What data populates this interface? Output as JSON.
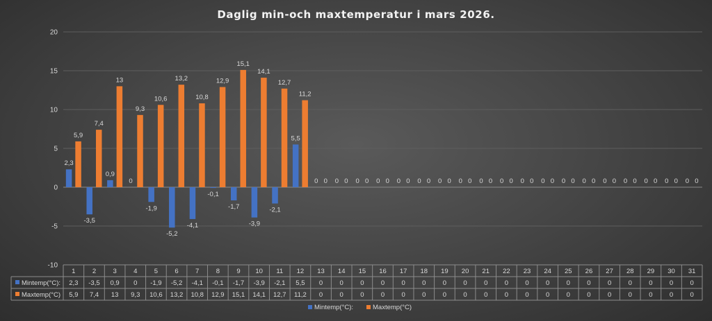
{
  "chart_data": {
    "type": "bar",
    "title": "Daglig min-och maxtemperatur i mars 2026.",
    "categories": [
      "1",
      "2",
      "3",
      "4",
      "5",
      "6",
      "7",
      "8",
      "9",
      "10",
      "11",
      "12",
      "13",
      "14",
      "15",
      "16",
      "17",
      "18",
      "19",
      "20",
      "21",
      "22",
      "23",
      "24",
      "25",
      "26",
      "27",
      "28",
      "29",
      "30",
      "31"
    ],
    "series": [
      {
        "name": "Mintemp(°C):",
        "color": "#4472c4",
        "values": [
          2.3,
          -3.5,
          0.9,
          0,
          -1.9,
          -5.2,
          -4.1,
          -0.1,
          -1.7,
          -3.9,
          -2.1,
          5.5,
          0,
          0,
          0,
          0,
          0,
          0,
          0,
          0,
          0,
          0,
          0,
          0,
          0,
          0,
          0,
          0,
          0,
          0,
          0
        ],
        "labels": [
          "2,3",
          "-3,5",
          "0,9",
          "0",
          "-1,9",
          "-5,2",
          "-4,1",
          "-0,1",
          "-1,7",
          "-3,9",
          "-2,1",
          "5,5",
          "0",
          "0",
          "0",
          "0",
          "0",
          "0",
          "0",
          "0",
          "0",
          "0",
          "0",
          "0",
          "0",
          "0",
          "0",
          "0",
          "0",
          "0",
          "0"
        ]
      },
      {
        "name": "Maxtemp(°C)",
        "color": "#ed7d31",
        "values": [
          5.9,
          7.4,
          13,
          9.3,
          10.6,
          13.2,
          10.8,
          12.9,
          15.1,
          14.1,
          12.7,
          11.2,
          0,
          0,
          0,
          0,
          0,
          0,
          0,
          0,
          0,
          0,
          0,
          0,
          0,
          0,
          0,
          0,
          0,
          0,
          0
        ],
        "labels": [
          "5,9",
          "7,4",
          "13",
          "9,3",
          "10,6",
          "13,2",
          "10,8",
          "12,9",
          "15,1",
          "14,1",
          "12,7",
          "11,2",
          "0",
          "0",
          "0",
          "0",
          "0",
          "0",
          "0",
          "0",
          "0",
          "0",
          "0",
          "0",
          "0",
          "0",
          "0",
          "0",
          "0",
          "0",
          "0"
        ]
      }
    ],
    "ylim": [
      -10,
      20
    ],
    "yticks": [
      -10,
      -5,
      0,
      5,
      10,
      15,
      20
    ],
    "ytick_labels": [
      "-10",
      "-5",
      "0",
      "5",
      "10",
      "15",
      "20"
    ],
    "grid": true,
    "data_table": true,
    "legend_position": "bottom"
  }
}
